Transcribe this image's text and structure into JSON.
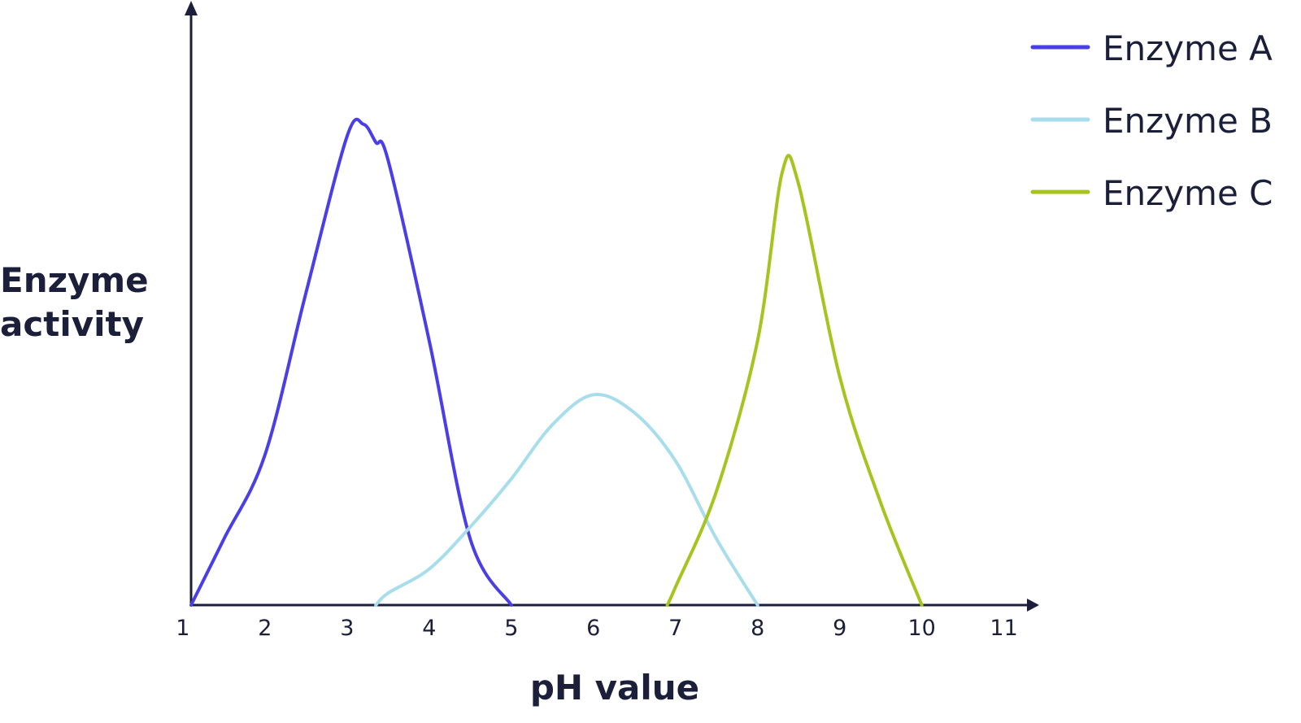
{
  "chart_data": {
    "type": "line",
    "x_label": "pH value",
    "y_label": "Enzyme activity",
    "x": [
      1.1,
      1.5,
      2,
      2.5,
      3,
      3.2,
      3.35,
      3.5,
      4,
      4.5,
      5,
      5.5,
      6,
      6.5,
      6.9,
      7,
      7.5,
      8,
      8.3,
      8.5,
      9,
      9.5,
      10
    ],
    "series": [
      {
        "name": "Enzyme A",
        "color": "#4a3fe6",
        "values": [
          0,
          11,
          25,
          52,
          78,
          80,
          77,
          74,
          44,
          11,
          0,
          null,
          null,
          null,
          null,
          null,
          null,
          null,
          null,
          null,
          null,
          null,
          null
        ]
      },
      {
        "name": "Enzyme B",
        "color": "#a8deeb",
        "values": [
          null,
          null,
          null,
          null,
          null,
          null,
          0,
          2,
          6,
          13,
          21,
          30,
          35,
          32,
          null,
          24,
          11,
          0,
          null,
          null,
          null,
          null,
          null
        ]
      },
      {
        "name": "Enzyme C",
        "color": "#a6c41f",
        "values": [
          null,
          null,
          null,
          null,
          null,
          null,
          null,
          null,
          null,
          null,
          null,
          null,
          null,
          null,
          0,
          3,
          19,
          44,
          72,
          70,
          38,
          17,
          0
        ]
      }
    ],
    "xlim": [
      1.1,
      11.4
    ],
    "ylim": [
      0,
      100
    ],
    "xticks": [
      1,
      2,
      3,
      4,
      5,
      6,
      7,
      8,
      9,
      10,
      11
    ],
    "legend": "top-right"
  }
}
